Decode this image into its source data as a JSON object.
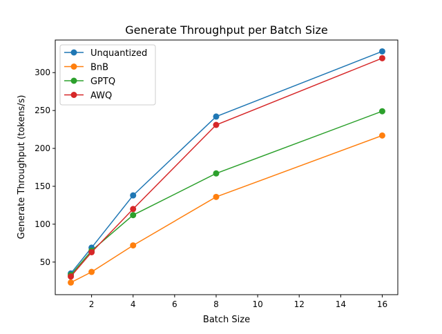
{
  "chart_data": {
    "type": "line",
    "title": "Generate Throughput per Batch Size",
    "xlabel": "Batch Size",
    "ylabel": "Generate Throughput (tokens/s)",
    "x": [
      1,
      2,
      4,
      8,
      16
    ],
    "xlim": [
      0.25,
      16.75
    ],
    "ylim": [
      7,
      343
    ],
    "xticks": [
      2,
      4,
      6,
      8,
      10,
      12,
      14,
      16
    ],
    "yticks": [
      50,
      100,
      150,
      200,
      250,
      300
    ],
    "grid": false,
    "legend": "top-left",
    "series": [
      {
        "name": "Unquantized",
        "color": "#1f77b4",
        "values": [
          35,
          69,
          138,
          242,
          328
        ]
      },
      {
        "name": "BnB",
        "color": "#ff7f0e",
        "values": [
          23,
          37,
          72,
          136,
          217
        ]
      },
      {
        "name": "GPTQ",
        "color": "#2ca02c",
        "values": [
          33,
          65,
          112,
          167,
          249
        ]
      },
      {
        "name": "AWQ",
        "color": "#d62728",
        "values": [
          31,
          63,
          120,
          231,
          319
        ]
      }
    ]
  }
}
